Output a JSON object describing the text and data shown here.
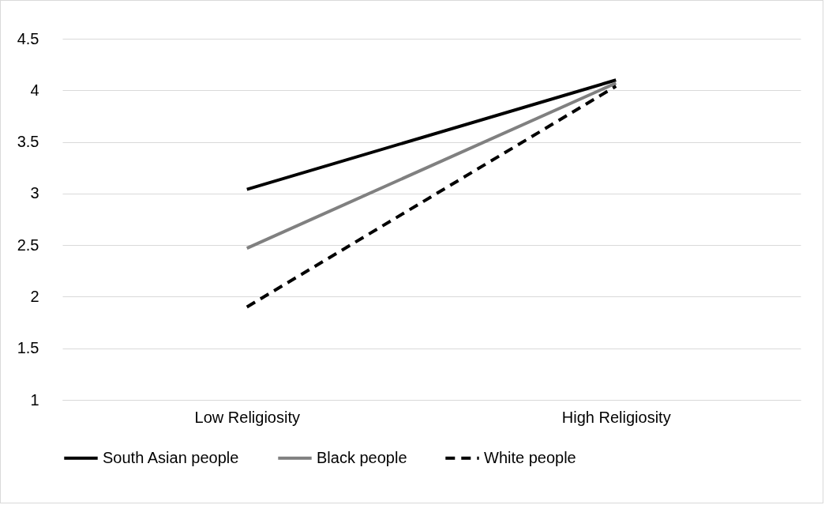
{
  "chart_data": {
    "type": "line",
    "categories": [
      "Low Religiosity",
      "High Religiosity"
    ],
    "series": [
      {
        "name": "South Asian people",
        "color": "#000000",
        "line_style": "solid",
        "values": [
          3.04,
          4.1
        ]
      },
      {
        "name": "Black people",
        "color": "#808080",
        "line_style": "solid",
        "values": [
          2.47,
          4.07
        ]
      },
      {
        "name": "White people",
        "color": "#000000",
        "line_style": "dashed",
        "values": [
          1.9,
          4.04
        ]
      }
    ],
    "ylim": [
      1,
      4.5
    ],
    "yticks": [
      1,
      1.5,
      2,
      2.5,
      3,
      3.5,
      4,
      4.5
    ],
    "grid": "y",
    "legend": "bottom",
    "marker": "none"
  }
}
